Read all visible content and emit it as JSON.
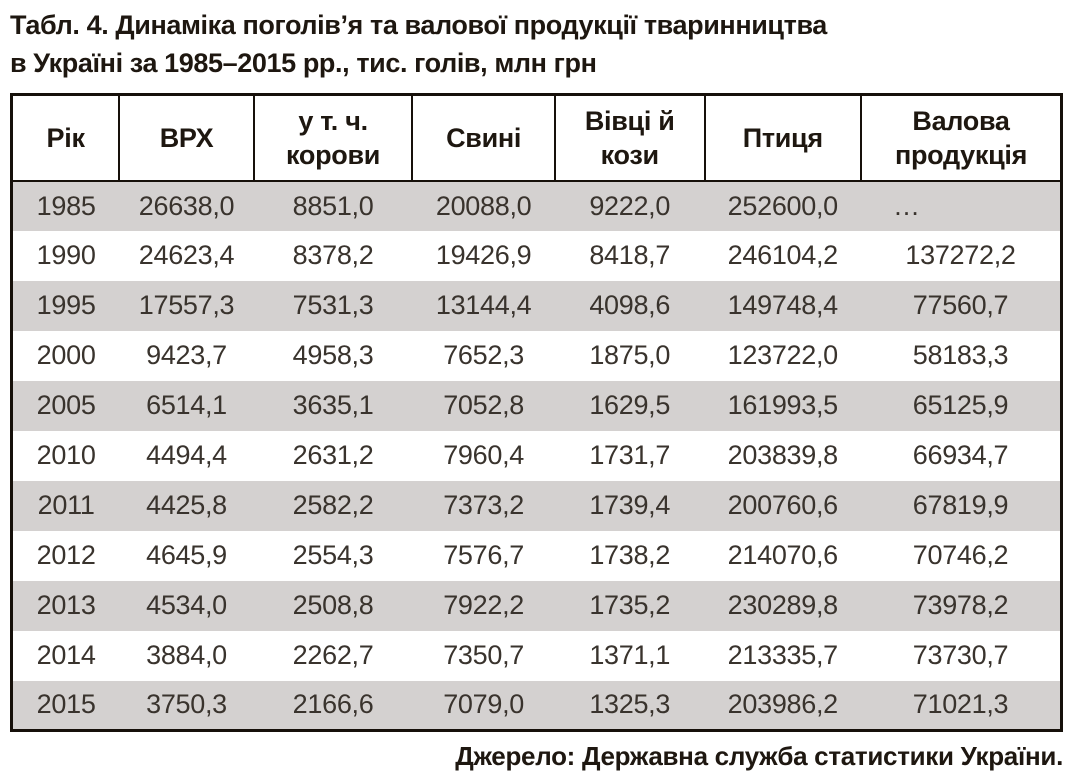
{
  "title": {
    "line1": "Табл. 4. Динаміка поголів’я та валової продукції тваринництва",
    "line2": "в Україні за 1985–2015 рр., тис. голів, млн грн"
  },
  "table": {
    "missing_marker": "…",
    "columns": [
      {
        "id": "year",
        "label": "Рік"
      },
      {
        "id": "cattle",
        "label": "ВРХ"
      },
      {
        "id": "cows",
        "label": "у т. ч.\nкорови"
      },
      {
        "id": "pigs",
        "label": "Свині"
      },
      {
        "id": "sheep-goats",
        "label": "Вівці й\nкози"
      },
      {
        "id": "poultry",
        "label": "Птиця"
      },
      {
        "id": "gross-output",
        "label": "Валова\nпродукція"
      }
    ],
    "rows": [
      [
        "1985",
        "26638,0",
        "8851,0",
        "20088,0",
        "9222,0",
        "252600,0",
        "…"
      ],
      [
        "1990",
        "24623,4",
        "8378,2",
        "19426,9",
        "8418,7",
        "246104,2",
        "137272,2"
      ],
      [
        "1995",
        "17557,3",
        "7531,3",
        "13144,4",
        "4098,6",
        "149748,4",
        "77560,7"
      ],
      [
        "2000",
        "9423,7",
        "4958,3",
        "7652,3",
        "1875,0",
        "123722,0",
        "58183,3"
      ],
      [
        "2005",
        "6514,1",
        "3635,1",
        "7052,8",
        "1629,5",
        "161993,5",
        "65125,9"
      ],
      [
        "2010",
        "4494,4",
        "2631,2",
        "7960,4",
        "1731,7",
        "203839,8",
        "66934,7"
      ],
      [
        "2011",
        "4425,8",
        "2582,2",
        "7373,2",
        "1739,4",
        "200760,6",
        "67819,9"
      ],
      [
        "2012",
        "4645,9",
        "2554,3",
        "7576,7",
        "1738,2",
        "214070,6",
        "70746,2"
      ],
      [
        "2013",
        "4534,0",
        "2508,8",
        "7922,2",
        "1735,2",
        "230289,8",
        "73978,2"
      ],
      [
        "2014",
        "3884,0",
        "2262,7",
        "7350,7",
        "1371,1",
        "213335,7",
        "73730,7"
      ],
      [
        "2015",
        "3750,3",
        "2166,6",
        "7079,0",
        "1325,3",
        "203986,2",
        "71021,3"
      ]
    ]
  },
  "footer": {
    "source": "Джерело: Державна служба статистики України."
  },
  "colors": {
    "stripe": "#d4d1d0",
    "border": "#16100a",
    "heading_text": "#1e1710",
    "body_text": "#39332d",
    "background": "#ffffff"
  }
}
